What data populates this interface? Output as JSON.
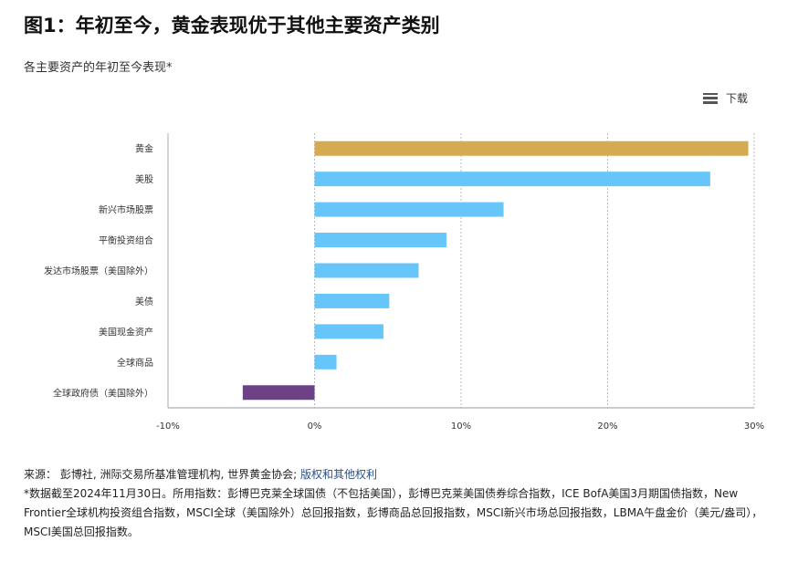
{
  "title": "图1：年初至今，黄金表现优于其他主要资产类别",
  "subtitle": "各主要资产的年初至今表现*",
  "download_label": "下载",
  "chart_data": {
    "type": "bar",
    "orientation": "horizontal",
    "categories": [
      "黄金",
      "美股",
      "新兴市场股票",
      "平衡投资组合",
      "发达市场股票（美国除外）",
      "美债",
      "美国现金资产",
      "全球商品",
      "全球政府债（美国除外）"
    ],
    "values": [
      29.6,
      27.0,
      12.9,
      9.0,
      7.1,
      5.1,
      4.7,
      1.5,
      -4.9
    ],
    "colors": [
      "#d6aa50",
      "#66c6fa",
      "#66c6fa",
      "#66c6fa",
      "#66c6fa",
      "#66c6fa",
      "#66c6fa",
      "#66c6fa",
      "#6e4187"
    ],
    "xlim": [
      -10,
      30
    ],
    "xticks": [
      "-10%",
      "0%",
      "10%",
      "20%",
      "30%"
    ],
    "xtick_values": [
      -10,
      0,
      10,
      20,
      30
    ],
    "unit": "%",
    "grid": "vertical dotted",
    "legend": "none"
  },
  "footer": {
    "source_prefix": "来源：  彭博社, 洲际交易所基准管理机构, 世界黄金协会; ",
    "source_link": "版权和其他权利",
    "note": "*数据截至2024年11月30日。所用指数：彭博巴克莱全球国债（不包括美国），彭博巴克莱美国债券综合指数，ICE BofA美国3月期国债指数，New Frontier全球机构投资组合指数，MSCI全球（美国除外）总回报指数，彭博商品总回报指数，MSCI新兴市场总回报指数，LBMA午盘金价（美元/盎司），MSCI美国总回报指数。"
  }
}
